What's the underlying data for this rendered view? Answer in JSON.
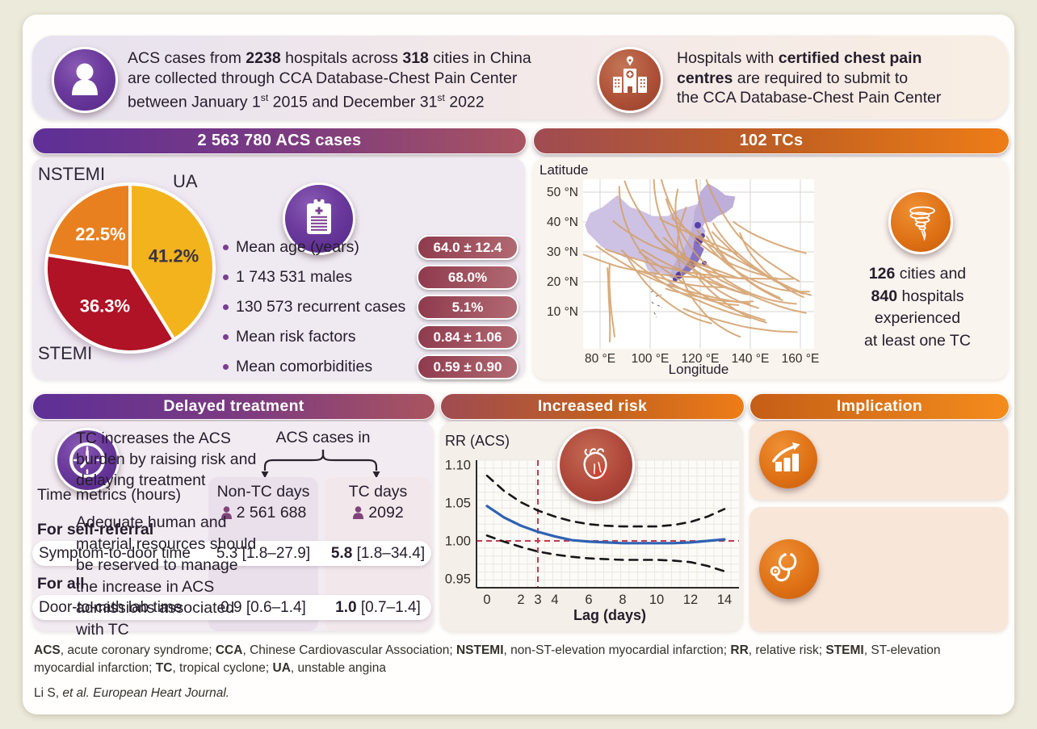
{
  "top_band": {
    "left": {
      "icon": "person",
      "lines": [
        [
          {
            "t": "ACS cases from "
          },
          {
            "t": "2238",
            "b": 1
          },
          {
            "t": " hospitals across "
          },
          {
            "t": "318",
            "b": 1
          },
          {
            "t": " cities in China"
          }
        ],
        [
          {
            "t": "are collected through CCA Database-Chest Pain Center"
          }
        ],
        [
          {
            "t": "between January 1"
          },
          {
            "t": "st",
            "s": 1
          },
          {
            "t": " 2015 and December 31"
          },
          {
            "t": "st",
            "s": 1
          },
          {
            "t": " 2022"
          }
        ]
      ]
    },
    "right": {
      "icon": "hospital",
      "lines": [
        [
          {
            "t": "Hospitals with "
          },
          {
            "t": "certified chest pain",
            "b": 1
          }
        ],
        [
          {
            "t": "centres",
            "b": 1
          },
          {
            "t": " are required to submit to"
          }
        ],
        [
          {
            "t": "the CCA Database-Chest Pain Center"
          }
        ]
      ]
    }
  },
  "acs_panel": {
    "header": "2 563 780 ACS cases",
    "stats": [
      {
        "label": "Mean age (years)",
        "value": "64.0 ± 12.4"
      },
      {
        "label": "1 743 531 males",
        "value": "68.0%"
      },
      {
        "label": "130 573 recurrent cases",
        "value": "5.1%"
      },
      {
        "label": "Mean risk factors",
        "value": "0.84 ± 1.06"
      },
      {
        "label": "Mean comorbidities",
        "value": "0.59 ± 0.90"
      }
    ]
  },
  "tc_panel": {
    "header": "102 TCs",
    "info_lines": [
      [
        {
          "t": "126",
          "b": 1
        },
        {
          "t": " cities and"
        }
      ],
      [
        {
          "t": "840",
          "b": 1
        },
        {
          "t": " hospitals"
        }
      ],
      [
        {
          "t": "experienced"
        }
      ],
      [
        {
          "t": "at least one TC"
        }
      ]
    ]
  },
  "delayed_panel": {
    "header": "Delayed treatment",
    "time_metrics_label": "Time metrics (hours)",
    "cases_in_label": "ACS cases in",
    "columns": [
      {
        "name": "Non-TC days",
        "count": "2 561 688"
      },
      {
        "name": "TC days",
        "count": "2092"
      }
    ],
    "groups": [
      {
        "label": "For self-referral",
        "row": "Symptom-to-door time",
        "values": [
          [
            {
              "t": "5.3"
            },
            {
              "t": " [1.8–27.9]"
            }
          ],
          [
            {
              "t": "5.8",
              "b": 1
            },
            {
              "t": " [1.8–34.4]"
            }
          ]
        ]
      },
      {
        "label": "For all",
        "row": "Door-to-cath lab time",
        "values": [
          [
            {
              "t": "0.9"
            },
            {
              "t": " [0.6–1.4]"
            }
          ],
          [
            {
              "t": "1.0",
              "b": 1
            },
            {
              "t": " [0.7–1.4]"
            }
          ]
        ]
      }
    ]
  },
  "risk_panel": {
    "header": "Increased risk"
  },
  "implication_panel": {
    "header": "Implication",
    "cards": [
      {
        "icon": "growth-chart",
        "text": "TC increases the ACS burden by raising risk and delaying treatment"
      },
      {
        "icon": "stethoscope",
        "text": "Adequate human and material resources should be reserved to manage the increase in ACS admissions associated with TC"
      }
    ]
  },
  "footer": {
    "abbreviations": [
      {
        "t": "ACS",
        "b": 1
      },
      {
        "t": ", acute coronary syndrome; "
      },
      {
        "t": "CCA",
        "b": 1
      },
      {
        "t": ", Chinese Cardiovascular Association; "
      },
      {
        "t": "NSTEMI",
        "b": 1
      },
      {
        "t": ", non-ST-elevation myocardial infarction; "
      },
      {
        "t": "RR",
        "b": 1
      },
      {
        "t": ", relative risk; "
      },
      {
        "t": "STEMI",
        "b": 1
      },
      {
        "t": ", ST-elevation myocardial infarction; "
      },
      {
        "t": "TC",
        "b": 1
      },
      {
        "t": ", tropical cyclone; "
      },
      {
        "t": "UA",
        "b": 1
      },
      {
        "t": ", unstable angina"
      }
    ],
    "citation": [
      {
        "t": "Li S, "
      },
      {
        "t": "et al. European Heart Journal.",
        "i": 1
      }
    ]
  },
  "chart_data": [
    {
      "type": "pie",
      "title": "2 563 780 ACS cases",
      "slices": [
        {
          "label": "UA",
          "value": 41.2,
          "color": "#F2B31C",
          "pct_color": "#3A3442"
        },
        {
          "label": "STEMI",
          "value": 36.3,
          "color": "#B01226",
          "pct_color": "#FFFFFF"
        },
        {
          "label": "NSTEMI",
          "value": 22.5,
          "color": "#E8801F",
          "pct_color": "#FFFFFF"
        }
      ],
      "start_angle_deg": -90,
      "direction": "clockwise"
    },
    {
      "type": "line",
      "title": "102 TCs",
      "note": "Tropical cyclone tracks around China, 2015-2022",
      "xlabel": "Longitude",
      "ylabel": "Latitude",
      "x_ticks": [
        "80 °E",
        "100 °E",
        "120 °E",
        "140 °E",
        "160 °E"
      ],
      "y_ticks": [
        "50 °N",
        "40 °N",
        "30 °N",
        "20 °N",
        "10 °N"
      ],
      "grid": true
    },
    {
      "type": "line",
      "ylabel": "RR (ACS)",
      "xlabel": "Lag (days)",
      "x": [
        0,
        1,
        2,
        3,
        4,
        5,
        6,
        7,
        8,
        9,
        10,
        11,
        12,
        13,
        14
      ],
      "series": [
        {
          "name": "RR",
          "color": "#2E62B4",
          "style": "solid",
          "values": [
            1.046,
            1.031,
            1.02,
            1.012,
            1.006,
            1.001,
            0.999,
            0.998,
            0.997,
            0.997,
            0.997,
            0.997,
            0.998,
            1.0,
            1.002
          ]
        },
        {
          "name": "upper 95% CI",
          "color": "#161616",
          "style": "dashed",
          "values": [
            1.086,
            1.066,
            1.051,
            1.04,
            1.032,
            1.026,
            1.022,
            1.02,
            1.019,
            1.019,
            1.019,
            1.021,
            1.025,
            1.032,
            1.042
          ]
        },
        {
          "name": "lower 95% CI",
          "color": "#161616",
          "style": "dashed",
          "values": [
            1.007,
            0.999,
            0.992,
            0.986,
            0.982,
            0.979,
            0.977,
            0.976,
            0.975,
            0.975,
            0.975,
            0.974,
            0.972,
            0.967,
            0.96
          ]
        }
      ],
      "ylim": [
        0.95,
        1.1
      ],
      "y_ticks": [
        "1.10",
        "1.05",
        "1.00",
        "0.95"
      ],
      "x_ticks": [
        0,
        2,
        3,
        4,
        6,
        8,
        10,
        12,
        14
      ],
      "reference_lines": {
        "h_rr": 1.0,
        "v_lag": 3
      },
      "grid": true
    }
  ]
}
